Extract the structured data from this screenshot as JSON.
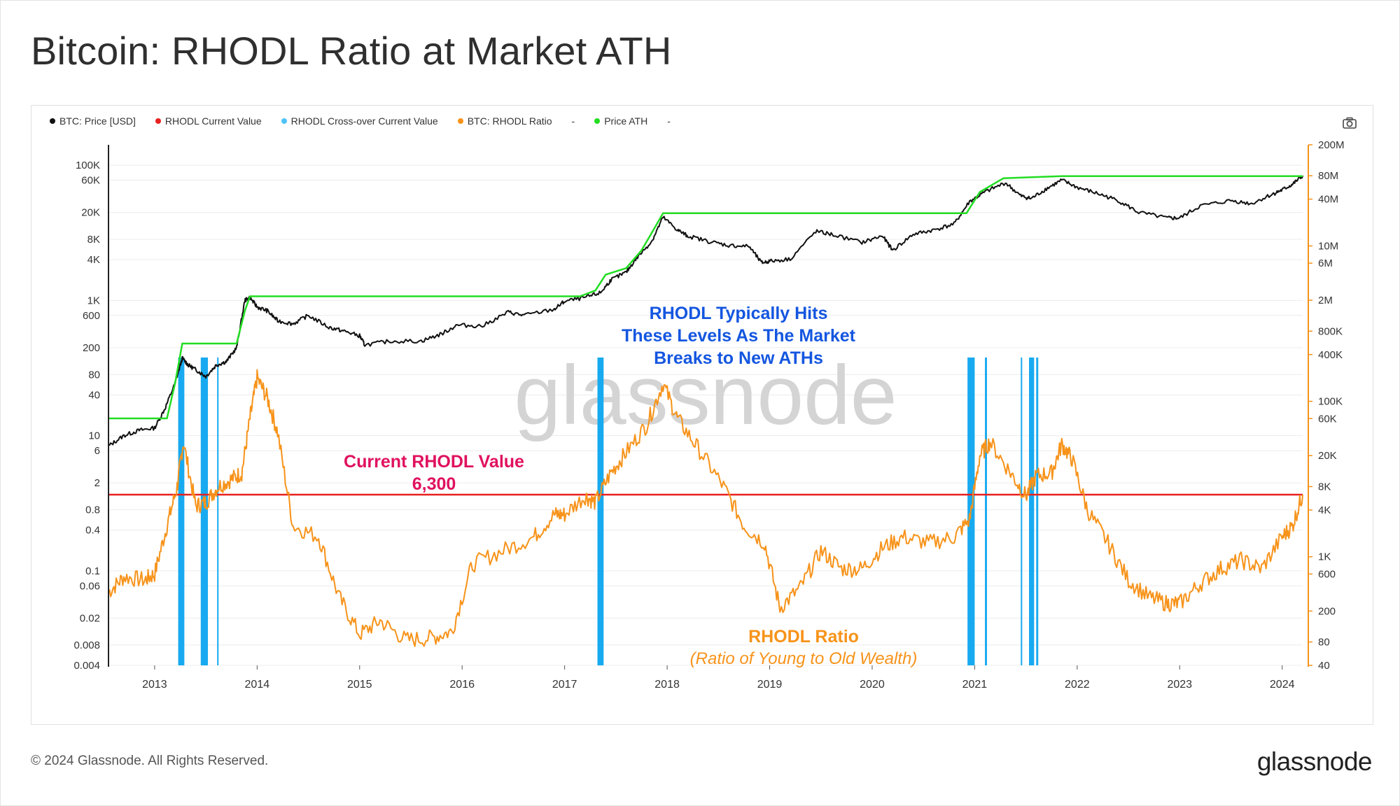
{
  "title": "Bitcoin: RHODL Ratio at Market ATH",
  "footer": {
    "copyright": "© 2024 Glassnode. All Rights Reserved.",
    "logo": "glassnode"
  },
  "watermark": "glassnode",
  "legend": [
    {
      "label": "BTC: Price [USD]",
      "color": "#111111"
    },
    {
      "label": "RHODL Current Value",
      "color": "#e8201f"
    },
    {
      "label": "RHODL Cross-over Current Value",
      "color": "#4fc3f7"
    },
    {
      "label": "BTC: RHODL Ratio",
      "color": "#f7931a"
    },
    {
      "label": "-",
      "color": ""
    },
    {
      "label": "Price ATH",
      "color": "#22dd22"
    },
    {
      "label": "-",
      "color": ""
    }
  ],
  "icons": {
    "camera": "camera-icon"
  },
  "annotations": {
    "typical": [
      "RHODL Typically Hits",
      "These Levels As The Market",
      "Breaks to New ATHs"
    ],
    "current_label": "Current RHODL Value",
    "current_value": "6,300",
    "ratio_title": "RHODL Ratio",
    "ratio_subtitle": "(Ratio of Young to Old Wealth)"
  },
  "colors": {
    "price": "#111111",
    "ath": "#22dd22",
    "rhodl": "#f7931a",
    "current": "#e8201f",
    "crossover": "#18aaf0",
    "annotation_blue": "#1456e0",
    "annotation_red": "#e0115f",
    "annotation_orange": "#f7931a"
  },
  "chart_data": {
    "type": "line",
    "title": "Bitcoin: RHODL Ratio at Market ATH",
    "x_range": [
      2012.55,
      2024.2
    ],
    "x_ticks": [
      "2013",
      "2014",
      "2015",
      "2016",
      "2017",
      "2018",
      "2019",
      "2020",
      "2021",
      "2022",
      "2023",
      "2024"
    ],
    "y_left": {
      "scale": "log",
      "range": [
        0.004,
        200000
      ],
      "ticks": [
        {
          "v": 100000,
          "label": "100K"
        },
        {
          "v": 60000,
          "label": "60K"
        },
        {
          "v": 20000,
          "label": "20K"
        },
        {
          "v": 8000,
          "label": "8K"
        },
        {
          "v": 4000,
          "label": "4K"
        },
        {
          "v": 1000,
          "label": "1K"
        },
        {
          "v": 600,
          "label": "600"
        },
        {
          "v": 200,
          "label": "200"
        },
        {
          "v": 80,
          "label": "80"
        },
        {
          "v": 40,
          "label": "40"
        },
        {
          "v": 10,
          "label": "10"
        },
        {
          "v": 6,
          "label": "6"
        },
        {
          "v": 2,
          "label": "2"
        },
        {
          "v": 0.8,
          "label": "0.8"
        },
        {
          "v": 0.4,
          "label": "0.4"
        },
        {
          "v": 0.1,
          "label": "0.1"
        },
        {
          "v": 0.06,
          "label": "0.06"
        },
        {
          "v": 0.02,
          "label": "0.02"
        },
        {
          "v": 0.008,
          "label": "0.008"
        },
        {
          "v": 0.004,
          "label": "0.004"
        }
      ]
    },
    "y_right": {
      "scale": "log",
      "range": [
        40,
        200000000
      ],
      "ticks": [
        {
          "v": 200000000,
          "label": "200M"
        },
        {
          "v": 80000000,
          "label": "80M"
        },
        {
          "v": 40000000,
          "label": "40M"
        },
        {
          "v": 10000000,
          "label": "10M"
        },
        {
          "v": 6000000,
          "label": "6M"
        },
        {
          "v": 2000000,
          "label": "2M"
        },
        {
          "v": 800000,
          "label": "800K"
        },
        {
          "v": 400000,
          "label": "400K"
        },
        {
          "v": 100000,
          "label": "100K"
        },
        {
          "v": 60000,
          "label": "60K"
        },
        {
          "v": 20000,
          "label": "20K"
        },
        {
          "v": 8000,
          "label": "8K"
        },
        {
          "v": 4000,
          "label": "4K"
        },
        {
          "v": 1000,
          "label": "1K"
        },
        {
          "v": 600,
          "label": "600"
        },
        {
          "v": 200,
          "label": "200"
        },
        {
          "v": 80,
          "label": "80"
        },
        {
          "v": 40,
          "label": "40"
        }
      ]
    },
    "rhodl_current_value": 6300,
    "series": [
      {
        "name": "BTC: Price [USD]",
        "axis": "left",
        "x": [
          2012.55,
          2012.7,
          2012.85,
          2013.0,
          2013.1,
          2013.2,
          2013.27,
          2013.33,
          2013.4,
          2013.5,
          2013.6,
          2013.7,
          2013.8,
          2013.88,
          2013.93,
          2014.0,
          2014.1,
          2014.2,
          2014.35,
          2014.5,
          2014.7,
          2014.85,
          2015.0,
          2015.05,
          2015.3,
          2015.6,
          2015.8,
          2015.95,
          2016.2,
          2016.45,
          2016.6,
          2016.9,
          2017.0,
          2017.2,
          2017.35,
          2017.45,
          2017.6,
          2017.7,
          2017.85,
          2017.96,
          2018.1,
          2018.2,
          2018.4,
          2018.6,
          2018.8,
          2018.92,
          2019.0,
          2019.2,
          2019.45,
          2019.6,
          2019.9,
          2020.1,
          2020.2,
          2020.4,
          2020.6,
          2020.8,
          2020.95,
          2021.1,
          2021.3,
          2021.45,
          2021.55,
          2021.7,
          2021.85,
          2022.0,
          2022.2,
          2022.4,
          2022.6,
          2022.88,
          2023.0,
          2023.2,
          2023.5,
          2023.7,
          2023.9,
          2024.0,
          2024.1,
          2024.2
        ],
        "y": [
          7,
          10,
          12,
          13,
          25,
          60,
          140,
          110,
          95,
          75,
          110,
          125,
          200,
          1000,
          1100,
          800,
          700,
          500,
          450,
          600,
          400,
          350,
          300,
          220,
          250,
          250,
          320,
          430,
          420,
          670,
          600,
          740,
          970,
          1100,
          1300,
          2000,
          2600,
          4200,
          7500,
          17000,
          11000,
          9000,
          7500,
          6500,
          6300,
          3600,
          3800,
          4100,
          10500,
          9500,
          7200,
          9000,
          5500,
          9500,
          11000,
          13500,
          29000,
          40000,
          55000,
          35000,
          32000,
          45000,
          60000,
          47000,
          38000,
          30000,
          20000,
          16500,
          16500,
          25000,
          30000,
          27000,
          37000,
          43000,
          52000,
          70000
        ]
      },
      {
        "name": "Price ATH",
        "axis": "left",
        "x": [
          2012.55,
          2013.12,
          2013.2,
          2013.27,
          2013.8,
          2013.88,
          2013.93,
          2017.15,
          2017.3,
          2017.4,
          2017.6,
          2017.75,
          2017.85,
          2017.96,
          2020.92,
          2021.05,
          2021.28,
          2021.85,
          2024.2
        ],
        "y": [
          18,
          18,
          60,
          230,
          230,
          700,
          1150,
          1150,
          1400,
          2400,
          3000,
          5500,
          10000,
          19500,
          19500,
          40000,
          64000,
          69000,
          69000
        ]
      },
      {
        "name": "BTC: RHODL Ratio",
        "axis": "right",
        "x": [
          2012.55,
          2012.7,
          2012.9,
          2013.0,
          2013.12,
          2013.22,
          2013.28,
          2013.4,
          2013.5,
          2013.62,
          2013.75,
          2013.85,
          2013.93,
          2014.0,
          2014.1,
          2014.2,
          2014.35,
          2014.6,
          2014.8,
          2015.0,
          2015.2,
          2015.45,
          2015.7,
          2015.9,
          2016.1,
          2016.4,
          2016.7,
          2016.9,
          2017.0,
          2017.2,
          2017.3,
          2017.45,
          2017.6,
          2017.8,
          2017.96,
          2018.1,
          2018.3,
          2018.55,
          2018.75,
          2018.95,
          2019.1,
          2019.3,
          2019.5,
          2019.7,
          2019.9,
          2020.1,
          2020.3,
          2020.55,
          2020.8,
          2020.95,
          2021.05,
          2021.15,
          2021.35,
          2021.5,
          2021.6,
          2021.75,
          2021.85,
          2021.95,
          2022.1,
          2022.3,
          2022.5,
          2022.7,
          2022.88,
          2023.0,
          2023.2,
          2023.4,
          2023.6,
          2023.8,
          2024.0,
          2024.1,
          2024.2
        ],
        "y": [
          350,
          550,
          500,
          600,
          2500,
          8000,
          30000,
          4500,
          5000,
          8000,
          10000,
          12000,
          60000,
          200000,
          110000,
          40000,
          2500,
          1800,
          300,
          100,
          150,
          85,
          90,
          110,
          800,
          1200,
          1800,
          3500,
          3500,
          6000,
          5000,
          12000,
          22000,
          50000,
          170000,
          60000,
          25000,
          8000,
          2500,
          1500,
          220,
          400,
          1200,
          700,
          700,
          1300,
          1800,
          1500,
          1800,
          3000,
          20000,
          30000,
          12000,
          6000,
          11000,
          12000,
          28000,
          18000,
          4000,
          1500,
          500,
          300,
          250,
          250,
          450,
          700,
          900,
          700,
          1800,
          2500,
          6300
        ]
      }
    ],
    "crossover_bands": [
      {
        "x0": 2013.23,
        "x1": 2013.29
      },
      {
        "x0": 2013.45,
        "x1": 2013.52
      },
      {
        "x0": 2013.61,
        "x1": 2013.62
      },
      {
        "x0": 2017.32,
        "x1": 2017.38
      },
      {
        "x0": 2020.93,
        "x1": 2021.0
      },
      {
        "x0": 2021.1,
        "x1": 2021.12
      },
      {
        "x0": 2021.45,
        "x1": 2021.46
      },
      {
        "x0": 2021.53,
        "x1": 2021.58
      },
      {
        "x0": 2021.6,
        "x1": 2021.62
      }
    ]
  }
}
